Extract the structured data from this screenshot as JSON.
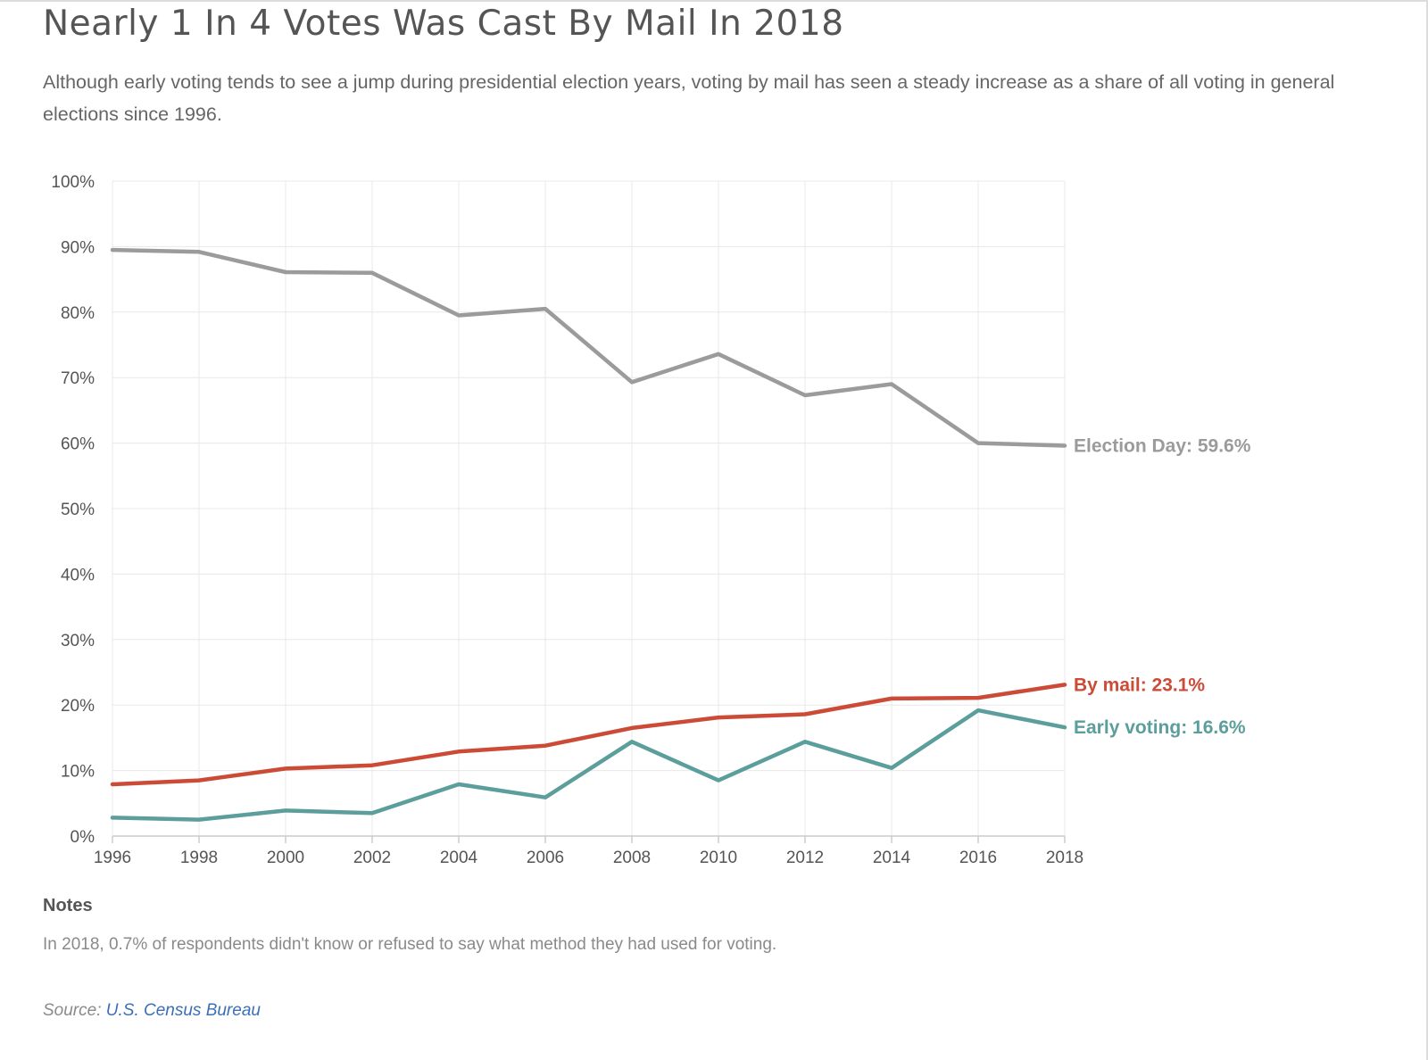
{
  "title": "Nearly 1 In 4 Votes Was Cast By Mail In 2018",
  "subtitle": "Although early voting tends to see a jump during presidential election years, voting by mail has seen a steady increase as a share of all voting in general elections since 1996.",
  "notes": {
    "heading": "Notes",
    "text": "In 2018, 0.7% of respondents didn't know or refused to say what method they had used for voting."
  },
  "source": {
    "label": "Source:",
    "link_text": "U.S. Census Bureau"
  },
  "colors": {
    "election_day": "#9b9b9b",
    "by_mail": "#cc4b37",
    "early_voting": "#5b9e9b",
    "grid": "#e8e8e8",
    "axis": "#cccccc"
  },
  "chart_data": {
    "type": "line",
    "title": "Nearly 1 In 4 Votes Was Cast By Mail In 2018",
    "xlabel": "",
    "ylabel": "",
    "x": [
      1996,
      1998,
      2000,
      2002,
      2004,
      2006,
      2008,
      2010,
      2012,
      2014,
      2016,
      2018
    ],
    "x_tick_labels": [
      "1996",
      "1998",
      "2000",
      "2002",
      "2004",
      "2006",
      "2008",
      "2010",
      "2012",
      "2014",
      "2016",
      "2018"
    ],
    "ylim": [
      0,
      100
    ],
    "y_ticks": [
      0,
      10,
      20,
      30,
      40,
      50,
      60,
      70,
      80,
      90,
      100
    ],
    "y_tick_labels": [
      "0%",
      "10%",
      "20%",
      "30%",
      "40%",
      "50%",
      "60%",
      "70%",
      "80%",
      "90%",
      "100%"
    ],
    "grid": true,
    "series": [
      {
        "key": "election_day",
        "name": "Election Day",
        "end_label": "Election Day: 59.6%",
        "color": "#9b9b9b",
        "values": [
          89.5,
          89.2,
          86.1,
          86.0,
          79.5,
          80.5,
          69.3,
          73.6,
          67.3,
          69.0,
          60.0,
          59.6
        ]
      },
      {
        "key": "by_mail",
        "name": "By mail",
        "end_label": "By mail: 23.1%",
        "color": "#cc4b37",
        "values": [
          7.9,
          8.5,
          10.3,
          10.8,
          12.9,
          13.8,
          16.5,
          18.1,
          18.6,
          21.0,
          21.1,
          23.1
        ]
      },
      {
        "key": "early_voting",
        "name": "Early voting",
        "end_label": "Early voting: 16.6%",
        "color": "#5b9e9b",
        "values": [
          2.8,
          2.5,
          3.9,
          3.5,
          7.9,
          5.9,
          14.4,
          8.5,
          14.4,
          10.4,
          19.2,
          16.6
        ]
      }
    ]
  }
}
